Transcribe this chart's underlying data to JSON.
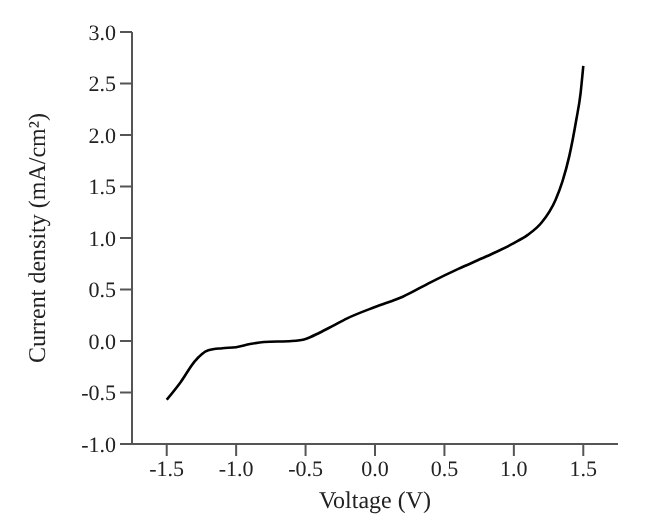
{
  "chart_data": {
    "type": "line",
    "xlabel": "Voltage (V)",
    "ylabel": "Current density (mA/cm²)",
    "x": [
      -1.5,
      -1.4,
      -1.3,
      -1.25,
      -1.2,
      -1.1,
      -1.0,
      -0.9,
      -0.8,
      -0.6,
      -0.5,
      -0.4,
      -0.3,
      -0.2,
      0,
      0.2,
      0.4,
      0.6,
      0.8,
      1.0,
      1.1,
      1.2,
      1.3,
      1.35,
      1.4,
      1.45,
      1.48,
      1.5
    ],
    "series": [
      {
        "color": "#000000",
        "values": [
          -0.57,
          -0.4,
          -0.2,
          -0.13,
          -0.09,
          -0.07,
          -0.06,
          -0.03,
          -0.01,
          0.0,
          0.02,
          0.08,
          0.15,
          0.22,
          0.33,
          0.43,
          0.57,
          0.7,
          0.82,
          0.95,
          1.03,
          1.15,
          1.37,
          1.55,
          1.8,
          2.15,
          2.4,
          2.67
        ]
      }
    ],
    "xlim": [
      -1.75,
      1.75
    ],
    "xticks": [
      {
        "value": -1.5,
        "label": "-1.5"
      },
      {
        "value": -1,
        "label": "-1.0"
      },
      {
        "value": -0.5,
        "label": "-0.5"
      },
      {
        "value": 0,
        "label": "0.0"
      },
      {
        "value": 0.5,
        "label": "0.5"
      },
      {
        "value": 1,
        "label": "1.0"
      },
      {
        "value": 1.5,
        "label": "1.5"
      }
    ],
    "ylim": [
      -1,
      3
    ],
    "yticks": [
      {
        "value": -1,
        "label": "-1.0"
      },
      {
        "value": -0.5,
        "label": "-0.5"
      },
      {
        "value": 0,
        "label": "0.0"
      },
      {
        "value": 0.5,
        "label": "0.5"
      },
      {
        "value": 1,
        "label": "1.0"
      },
      {
        "value": 1.5,
        "label": "1.5"
      },
      {
        "value": 2,
        "label": "2.0"
      },
      {
        "value": 2.5,
        "label": "2.5"
      },
      {
        "value": 3,
        "label": "3.0"
      }
    ],
    "grid": false,
    "marker": "none",
    "line_style": "solid"
  }
}
